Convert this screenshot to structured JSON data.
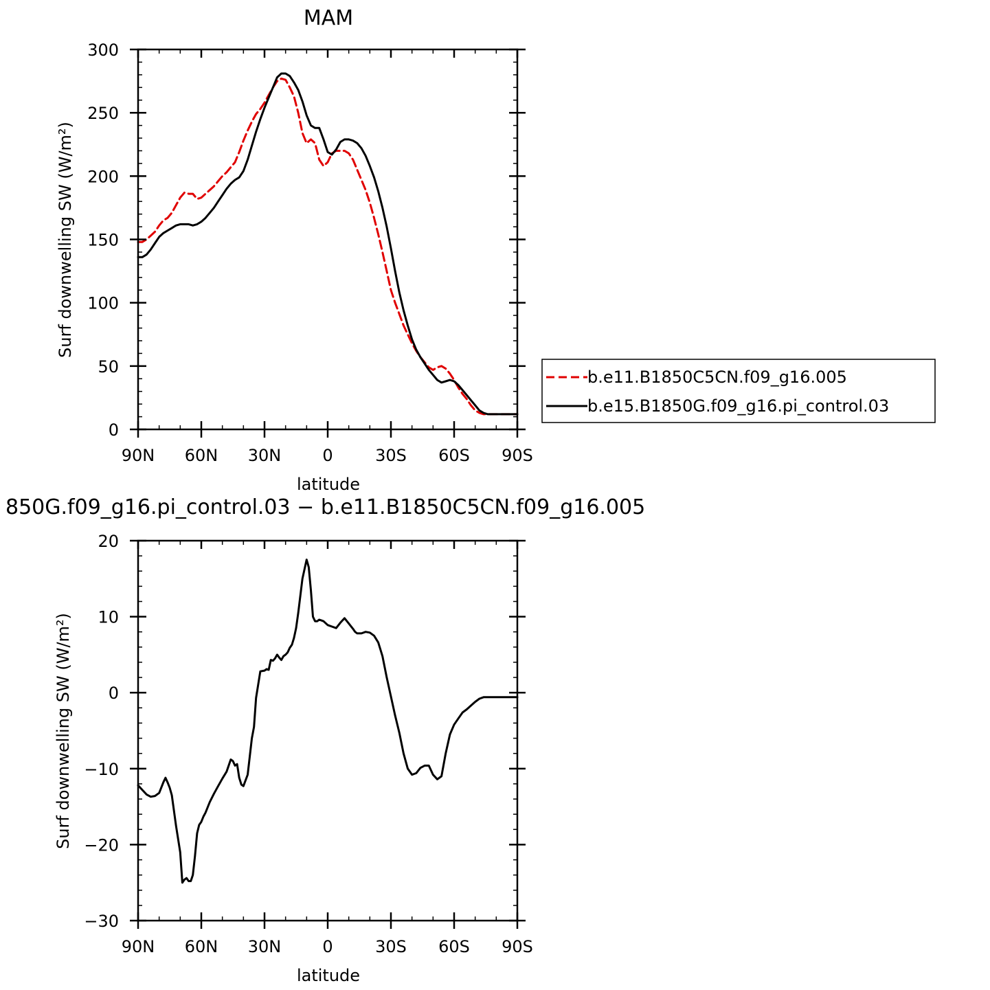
{
  "chart_data": [
    {
      "type": "line",
      "title": "MAM",
      "xlabel": "latitude",
      "ylabel": "Surf downwelling SW (W/m²)",
      "xlim": [
        90,
        -90
      ],
      "ylim": [
        0,
        300
      ],
      "xticks": [
        90,
        60,
        30,
        0,
        -30,
        -60,
        -90
      ],
      "xtick_labels": [
        "90N",
        "60N",
        "30N",
        "0",
        "30S",
        "60S",
        "90S"
      ],
      "yticks": [
        0,
        50,
        100,
        150,
        200,
        250,
        300
      ],
      "ytick_labels": [
        "0",
        "50",
        "100",
        "150",
        "200",
        "250",
        "300"
      ],
      "legend_position": "right",
      "series": [
        {
          "name": "b.e11.B1850C5CN.f09_g16.005",
          "color": "#e00000",
          "style": "dashed",
          "x": [
            90,
            88,
            86,
            84,
            82,
            80,
            78,
            76,
            74,
            72,
            70,
            68,
            66,
            64,
            62,
            60,
            58,
            56,
            54,
            52,
            50,
            48,
            46,
            44,
            42,
            40,
            38,
            36,
            34,
            32,
            30,
            28,
            26,
            24,
            22,
            20,
            18,
            16,
            14,
            12,
            10,
            8,
            6,
            4,
            2,
            0,
            -2,
            -4,
            -6,
            -8,
            -10,
            -12,
            -14,
            -16,
            -18,
            -20,
            -22,
            -24,
            -26,
            -28,
            -30,
            -32,
            -34,
            -36,
            -38,
            -40,
            -42,
            -44,
            -46,
            -48,
            -50,
            -52,
            -54,
            -56,
            -58,
            -60,
            -62,
            -64,
            -66,
            -68,
            -70,
            -72,
            -74,
            -76,
            -78,
            -80,
            -82,
            -84,
            -86,
            -88,
            -90
          ],
          "y": [
            148,
            148,
            150,
            153,
            156,
            161,
            165,
            167,
            171,
            177,
            183,
            187,
            186,
            186,
            182,
            183,
            186,
            189,
            192,
            196,
            200,
            203,
            207,
            211,
            219,
            228,
            236,
            243,
            249,
            253,
            258,
            264,
            270,
            275,
            277,
            276,
            270,
            263,
            250,
            234,
            226,
            229,
            226,
            213,
            208,
            211,
            218,
            220,
            220,
            220,
            218,
            213,
            205,
            197,
            189,
            179,
            167,
            154,
            140,
            125,
            110,
            100,
            91,
            82,
            75,
            68,
            62,
            57,
            53,
            49,
            47,
            49,
            50,
            48,
            44,
            39,
            33,
            28,
            24,
            19,
            15,
            13,
            12,
            12,
            12,
            12,
            12,
            12,
            12,
            12,
            12
          ]
        },
        {
          "name": "b.e15.B1850G.f09_g16.pi_control.03",
          "color": "#000000",
          "style": "solid",
          "x": [
            90,
            88,
            86,
            84,
            82,
            80,
            78,
            76,
            74,
            72,
            70,
            68,
            66,
            64,
            62,
            60,
            58,
            56,
            54,
            52,
            50,
            48,
            46,
            44,
            42,
            40,
            38,
            36,
            34,
            32,
            30,
            28,
            26,
            24,
            22,
            20,
            18,
            16,
            14,
            12,
            10,
            8,
            6,
            4,
            2,
            0,
            -2,
            -4,
            -6,
            -8,
            -10,
            -12,
            -14,
            -16,
            -18,
            -20,
            -22,
            -24,
            -26,
            -28,
            -30,
            -32,
            -34,
            -36,
            -38,
            -40,
            -42,
            -44,
            -46,
            -48,
            -50,
            -52,
            -54,
            -56,
            -58,
            -60,
            -62,
            -64,
            -66,
            -68,
            -70,
            -72,
            -74,
            -76,
            -78,
            -80,
            -82,
            -84,
            -86,
            -88,
            -90
          ],
          "y": [
            136,
            136,
            138,
            142,
            147,
            152,
            155,
            157,
            159,
            161,
            162,
            162,
            162,
            161,
            162,
            164,
            167,
            171,
            175,
            180,
            185,
            190,
            194,
            197,
            199,
            204,
            213,
            224,
            235,
            245,
            254,
            262,
            270,
            278,
            281,
            281,
            279,
            274,
            268,
            259,
            248,
            240,
            238,
            238,
            229,
            219,
            217,
            221,
            227,
            229,
            229,
            228,
            226,
            222,
            216,
            208,
            199,
            188,
            175,
            160,
            143,
            125,
            108,
            94,
            82,
            71,
            63,
            57,
            52,
            47,
            43,
            39,
            37,
            38,
            39,
            38,
            35,
            31,
            27,
            23,
            19,
            15,
            13,
            12,
            12,
            12,
            12,
            12,
            12,
            12,
            12
          ]
        }
      ]
    },
    {
      "type": "line",
      "title": "850G.f09_g16.pi_control.03 − b.e11.B1850C5CN.f09_g16.005",
      "xlabel": "latitude",
      "ylabel": "Surf downwelling SW (W/m²)",
      "xlim": [
        90,
        -90
      ],
      "ylim": [
        -30,
        20
      ],
      "xticks": [
        90,
        60,
        30,
        0,
        -30,
        -60,
        -90
      ],
      "xtick_labels": [
        "90N",
        "60N",
        "30N",
        "0",
        "30S",
        "60S",
        "90S"
      ],
      "yticks": [
        -30,
        -20,
        -10,
        0,
        10,
        20
      ],
      "ytick_labels": [
        "−30",
        "−20",
        "−10",
        "0",
        "10",
        "20"
      ],
      "series": [
        {
          "color": "#000000",
          "style": "solid",
          "x": [
            90,
            88,
            86,
            84,
            82,
            80,
            78,
            77,
            76,
            75,
            74,
            72,
            70,
            69,
            68,
            67,
            66,
            65,
            64,
            63,
            62,
            61,
            60,
            59,
            58,
            56,
            54,
            52,
            50,
            48,
            46,
            45,
            44,
            43,
            42,
            41,
            40,
            38,
            36,
            35,
            34,
            32,
            30,
            29,
            28,
            27,
            26,
            25,
            24,
            23,
            22,
            21,
            20,
            19,
            18,
            17,
            16,
            15,
            14,
            12,
            10,
            9,
            8,
            7,
            6,
            5,
            4,
            3,
            2,
            0,
            -2,
            -4,
            -6,
            -8,
            -10,
            -12,
            -13,
            -14,
            -16,
            -18,
            -20,
            -22,
            -24,
            -26,
            -28,
            -30,
            -32,
            -34,
            -36,
            -38,
            -40,
            -42,
            -44,
            -46,
            -48,
            -50,
            -52,
            -54,
            -56,
            -58,
            -60,
            -62,
            -64,
            -66,
            -68,
            -70,
            -72,
            -74,
            -76,
            -78,
            -80,
            -82,
            -84,
            -86,
            -88,
            -90
          ],
          "y": [
            -12.2,
            -12.8,
            -13.4,
            -13.7,
            -13.6,
            -13.2,
            -11.8,
            -11.2,
            -11.8,
            -12.5,
            -13.5,
            -17.5,
            -21.0,
            -25.0,
            -24.6,
            -24.4,
            -24.8,
            -24.8,
            -24.0,
            -21.5,
            -18.5,
            -17.4,
            -17.0,
            -16.3,
            -15.8,
            -14.4,
            -13.3,
            -12.3,
            -11.3,
            -10.4,
            -8.8,
            -9.0,
            -9.6,
            -9.4,
            -11.2,
            -12.1,
            -12.3,
            -10.8,
            -6.0,
            -4.5,
            -0.7,
            2.8,
            2.9,
            3.1,
            3.0,
            4.3,
            4.2,
            4.5,
            5.0,
            4.6,
            4.3,
            4.8,
            5.0,
            5.3,
            5.9,
            6.3,
            7.2,
            8.5,
            10.5,
            15.0,
            17.5,
            16.5,
            13.5,
            10.0,
            9.4,
            9.4,
            9.6,
            9.5,
            9.4,
            8.9,
            8.7,
            8.5,
            9.2,
            9.8,
            9.1,
            8.4,
            8.0,
            7.8,
            7.8,
            8.0,
            7.9,
            7.5,
            6.6,
            4.8,
            2.0,
            -0.5,
            -3.0,
            -5.3,
            -8.0,
            -10.0,
            -10.8,
            -10.6,
            -9.9,
            -9.6,
            -9.6,
            -10.8,
            -11.4,
            -11.0,
            -8.0,
            -5.5,
            -4.2,
            -3.4,
            -2.6,
            -2.2,
            -1.7,
            -1.2,
            -0.8,
            -0.6,
            -0.6,
            -0.6,
            -0.6,
            -0.6,
            -0.6,
            -0.6,
            -0.6,
            -0.6
          ]
        }
      ]
    }
  ]
}
